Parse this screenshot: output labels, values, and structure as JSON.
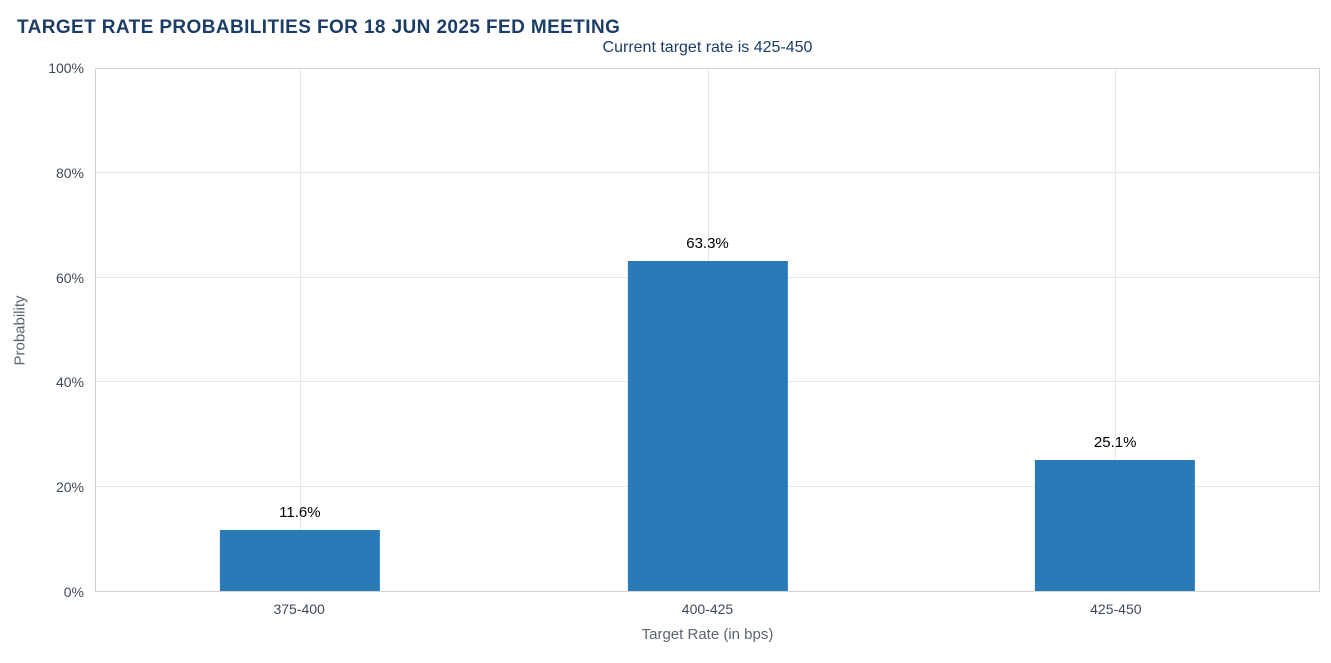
{
  "chart_data": {
    "type": "bar",
    "title": "TARGET RATE PROBABILITIES FOR 18 JUN 2025 FED MEETING",
    "subtitle": "Current target rate is 425-450",
    "categories": [
      "375-400",
      "400-425",
      "425-450"
    ],
    "values": [
      11.6,
      63.3,
      25.1
    ],
    "value_labels": [
      "11.6%",
      "63.3%",
      "25.1%"
    ],
    "xlabel": "Target Rate (in bps)",
    "ylabel": "Probability",
    "ylim": [
      0,
      100
    ],
    "yticks": [
      0,
      20,
      40,
      60,
      80,
      100
    ],
    "ytick_labels": [
      "0%",
      "20%",
      "40%",
      "60%",
      "80%",
      "100%"
    ],
    "grid": true,
    "legend": "none",
    "bar_color": "#2a7ab8",
    "colors": {
      "title": "#1c3e66",
      "subtitle": "#1c3e66",
      "tick_label": "#3d4a57",
      "axis_title": "#5b6570",
      "gridline": "#e6e6e6",
      "plot_border": "#d4d4d4",
      "data_label": "#000000"
    }
  }
}
